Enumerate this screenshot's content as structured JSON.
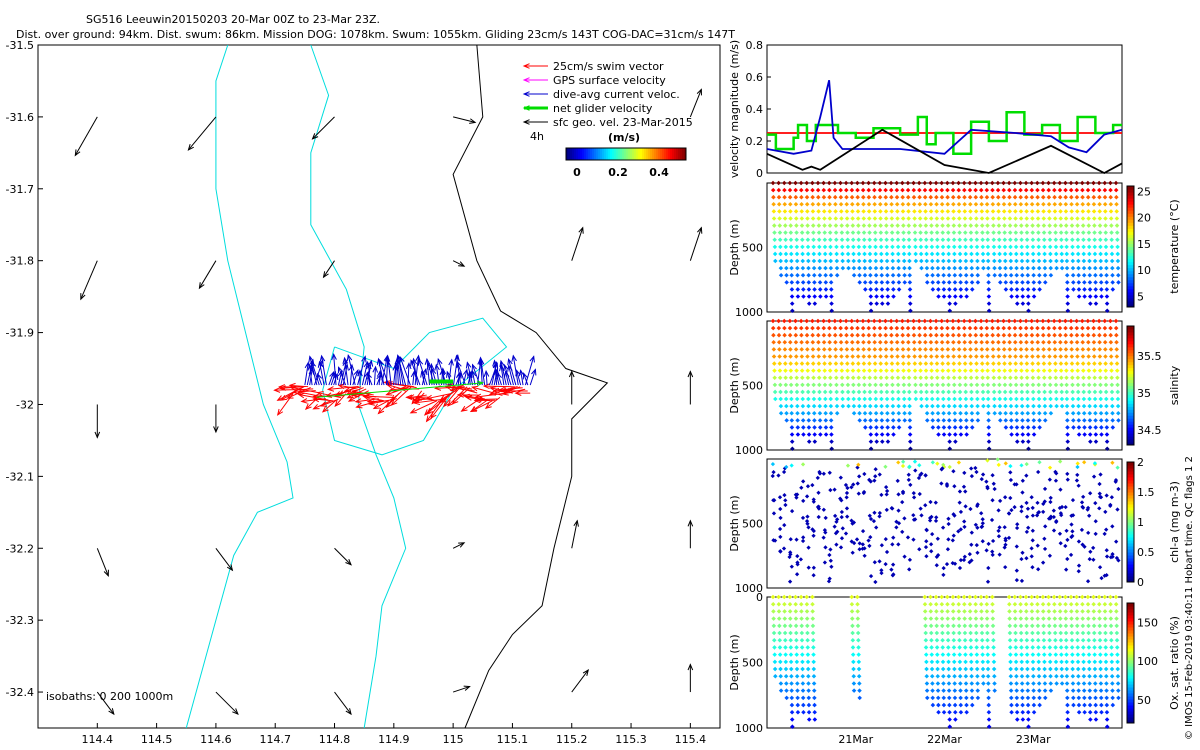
{
  "title_line1": "SG516 Leeuwin20150203 20-Mar 00Z to 23-Mar 23Z.",
  "title_line2": "Dist. over ground: 94km. Dist. swum: 86km. Mission DOG: 1078km. Swum: 1055km. Gliding 23cm/s 143T COG-DAC=31cm/s 147T",
  "side_label": "© IMOS 15-Feb-2019 03:40:11 Hobart time. QC flags 1  2",
  "colors": {
    "swim": "#ff0000",
    "gps": "#ff00ff",
    "dac": "#0000cc",
    "net": "#00dd00",
    "geo": "#000000",
    "coast": "#000000",
    "isobath": "#00dddd"
  },
  "chart_data": [
    {
      "type": "scatter",
      "name": "map",
      "xlim": [
        114.3,
        115.45
      ],
      "ylim": [
        -32.45,
        -31.5
      ],
      "xticks": [
        "114.4",
        "114.5",
        "114.6",
        "114.7",
        "114.8",
        "114.9",
        "115",
        "115.1",
        "115.2",
        "115.3",
        "115.4"
      ],
      "yticks": [
        "-31.5",
        "-31.6",
        "-31.7",
        "-31.8",
        "-31.9",
        "-32",
        "-32.1",
        "-32.2",
        "-32.3",
        "-32.4"
      ],
      "legend": [
        "25cm/s swim vector",
        "GPS surface velocity",
        "dive-avg current veloc.",
        "net glider velocity",
        "sfc geo. vel. 23-Mar-2015"
      ],
      "legend_time": "4h",
      "colorbar_label": "(m/s)",
      "colorbar_ticks": [
        "0",
        "0.2",
        "0.4"
      ],
      "isobaths_label": "isobaths: 0   200  1000m",
      "coastline": [
        [
          115.04,
          -31.5
        ],
        [
          115.05,
          -31.6
        ],
        [
          115.0,
          -31.68
        ],
        [
          115.04,
          -31.8
        ],
        [
          115.08,
          -31.87
        ],
        [
          115.14,
          -31.9
        ],
        [
          115.19,
          -31.95
        ],
        [
          115.26,
          -31.97
        ],
        [
          115.2,
          -32.02
        ],
        [
          115.2,
          -32.1
        ],
        [
          115.17,
          -32.2
        ],
        [
          115.15,
          -32.28
        ],
        [
          115.1,
          -32.32
        ],
        [
          115.06,
          -32.37
        ],
        [
          115.02,
          -32.45
        ]
      ],
      "isobath_200": [
        [
          114.76,
          -31.5
        ],
        [
          114.79,
          -31.57
        ],
        [
          114.76,
          -31.65
        ],
        [
          114.76,
          -31.75
        ],
        [
          114.82,
          -31.84
        ],
        [
          114.85,
          -31.92
        ],
        [
          114.84,
          -32.0
        ],
        [
          114.87,
          -32.07
        ],
        [
          114.9,
          -32.13
        ],
        [
          114.92,
          -32.2
        ],
        [
          114.88,
          -32.28
        ],
        [
          114.87,
          -32.35
        ],
        [
          114.85,
          -32.45
        ]
      ],
      "isobath_1000": [
        [
          114.62,
          -31.5
        ],
        [
          114.6,
          -31.55
        ],
        [
          114.6,
          -31.7
        ],
        [
          114.62,
          -31.8
        ],
        [
          114.65,
          -31.9
        ],
        [
          114.68,
          -32.0
        ],
        [
          114.72,
          -32.08
        ],
        [
          114.73,
          -32.13
        ],
        [
          114.67,
          -32.15
        ],
        [
          114.63,
          -32.21
        ],
        [
          114.6,
          -32.3
        ],
        [
          114.55,
          -32.45
        ]
      ],
      "geo_vectors": [
        {
          "lon": 114.4,
          "lat": -31.6,
          "u": -0.04,
          "v": -0.07
        },
        {
          "lon": 114.6,
          "lat": -31.6,
          "u": -0.05,
          "v": -0.06
        },
        {
          "lon": 114.8,
          "lat": -31.6,
          "u": -0.04,
          "v": -0.04
        },
        {
          "lon": 115.0,
          "lat": -31.6,
          "u": 0.04,
          "v": -0.01
        },
        {
          "lon": 115.4,
          "lat": -31.6,
          "u": 0.02,
          "v": 0.05
        },
        {
          "lon": 114.4,
          "lat": -31.8,
          "u": -0.03,
          "v": -0.07
        },
        {
          "lon": 114.6,
          "lat": -31.8,
          "u": -0.03,
          "v": -0.05
        },
        {
          "lon": 114.8,
          "lat": -31.8,
          "u": -0.02,
          "v": -0.03
        },
        {
          "lon": 115.0,
          "lat": -31.8,
          "u": 0.02,
          "v": -0.01
        },
        {
          "lon": 115.2,
          "lat": -31.8,
          "u": 0.02,
          "v": 0.06
        },
        {
          "lon": 115.4,
          "lat": -31.8,
          "u": 0.02,
          "v": 0.06
        },
        {
          "lon": 114.4,
          "lat": -32.0,
          "u": 0.0,
          "v": -0.06
        },
        {
          "lon": 114.6,
          "lat": -32.0,
          "u": 0.0,
          "v": -0.05
        },
        {
          "lon": 115.2,
          "lat": -32.0,
          "u": 0.0,
          "v": 0.06
        },
        {
          "lon": 115.4,
          "lat": -32.0,
          "u": 0.0,
          "v": 0.06
        },
        {
          "lon": 114.4,
          "lat": -32.2,
          "u": 0.02,
          "v": -0.05
        },
        {
          "lon": 114.6,
          "lat": -32.2,
          "u": 0.03,
          "v": -0.04
        },
        {
          "lon": 114.8,
          "lat": -32.2,
          "u": 0.03,
          "v": -0.03
        },
        {
          "lon": 115.0,
          "lat": -32.2,
          "u": 0.02,
          "v": 0.01
        },
        {
          "lon": 115.2,
          "lat": -32.2,
          "u": 0.01,
          "v": 0.05
        },
        {
          "lon": 115.4,
          "lat": -32.2,
          "u": 0.0,
          "v": 0.05
        },
        {
          "lon": 114.4,
          "lat": -32.4,
          "u": 0.03,
          "v": -0.04
        },
        {
          "lon": 114.6,
          "lat": -32.4,
          "u": 0.04,
          "v": -0.04
        },
        {
          "lon": 114.8,
          "lat": -32.4,
          "u": 0.03,
          "v": -0.04
        },
        {
          "lon": 115.0,
          "lat": -32.4,
          "u": 0.03,
          "v": 0.01
        },
        {
          "lon": 115.2,
          "lat": -32.4,
          "u": 0.03,
          "v": 0.04
        },
        {
          "lon": 115.4,
          "lat": -32.4,
          "u": 0.0,
          "v": 0.05
        }
      ]
    },
    {
      "type": "line",
      "name": "velocity",
      "ylabel": "velocity magnitude (m/s)",
      "ylim": [
        0,
        0.8
      ],
      "yticks": [
        "0",
        "0.2",
        "0.4",
        "0.6",
        "0.8"
      ],
      "xlim": [
        0,
        4
      ],
      "xticks": [
        {
          "x": 1,
          "label": "21Mar"
        },
        {
          "x": 2,
          "label": "22Mar"
        },
        {
          "x": 3,
          "label": "23Mar"
        }
      ],
      "series": [
        {
          "color": "swim",
          "x": [
            0,
            4
          ],
          "y": [
            0.25,
            0.25
          ]
        },
        {
          "color": "net",
          "x": [
            0,
            0.1,
            0.1,
            0.3,
            0.3,
            0.35,
            0.35,
            0.45,
            0.45,
            0.55,
            0.55,
            0.8,
            0.8,
            1.0,
            1.0,
            1.2,
            1.2,
            1.5,
            1.5,
            1.7,
            1.7,
            1.8,
            1.8,
            1.9,
            1.9,
            2.1,
            2.1,
            2.3,
            2.3,
            2.5,
            2.5,
            2.7,
            2.7,
            2.9,
            2.9,
            3.1,
            3.1,
            3.3,
            3.3,
            3.5,
            3.5,
            3.7,
            3.7,
            3.9,
            3.9,
            4.0
          ],
          "y": [
            0.24,
            0.24,
            0.15,
            0.15,
            0.22,
            0.22,
            0.3,
            0.3,
            0.2,
            0.2,
            0.3,
            0.3,
            0.25,
            0.25,
            0.22,
            0.22,
            0.28,
            0.28,
            0.24,
            0.24,
            0.35,
            0.35,
            0.18,
            0.18,
            0.25,
            0.25,
            0.12,
            0.12,
            0.32,
            0.32,
            0.2,
            0.2,
            0.38,
            0.38,
            0.24,
            0.24,
            0.3,
            0.3,
            0.2,
            0.2,
            0.35,
            0.35,
            0.25,
            0.25,
            0.3,
            0.3
          ]
        },
        {
          "color": "dac",
          "x": [
            0,
            0.3,
            0.5,
            0.6,
            0.7,
            0.75,
            0.85,
            1.5,
            2.0,
            2.3,
            2.8,
            3.2,
            3.4,
            3.6,
            3.8,
            4.0
          ],
          "y": [
            0.15,
            0.12,
            0.14,
            0.35,
            0.58,
            0.22,
            0.15,
            0.15,
            0.12,
            0.27,
            0.25,
            0.23,
            0.16,
            0.13,
            0.24,
            0.27
          ]
        },
        {
          "color": "geo",
          "x": [
            0,
            0.4,
            0.5,
            0.6,
            1.3,
            2.0,
            2.5,
            3.2,
            3.8,
            4.0
          ],
          "y": [
            0.12,
            0.02,
            0.04,
            0.02,
            0.27,
            0.05,
            0.0,
            0.17,
            0.0,
            0.06
          ]
        }
      ]
    },
    {
      "type": "scatter",
      "name": "temperature",
      "ylabel": "Depth (m)",
      "cblabel": "temperature (°C)",
      "cbticks": [
        "5",
        "10",
        "15",
        "20",
        "25"
      ],
      "yticks": [
        "500",
        "1000"
      ],
      "vmin": 3,
      "vmax": 26
    },
    {
      "type": "scatter",
      "name": "salinity",
      "ylabel": "Depth (m)",
      "cblabel": "salinity",
      "cbticks": [
        "34.5",
        "35",
        "35.5"
      ],
      "yticks": [
        "500",
        "1000"
      ],
      "vmin": 34.3,
      "vmax": 35.9
    },
    {
      "type": "scatter",
      "name": "chl",
      "ylabel": "Depth (m)",
      "cblabel": "chl-a (mg m-3)",
      "cbticks": [
        "0",
        "0.5",
        "1",
        "1.5",
        "2"
      ],
      "yticks": [
        "500",
        "1000"
      ],
      "vmin": 0,
      "vmax": 2
    },
    {
      "type": "scatter",
      "name": "oxygen",
      "ylabel": "Depth (m)",
      "cblabel": "Ox. sat. ratio (%)",
      "cbticks": [
        "50",
        "100",
        "150"
      ],
      "yticks": [
        "0",
        "500",
        "1000"
      ],
      "vmin": 20,
      "vmax": 175
    }
  ]
}
